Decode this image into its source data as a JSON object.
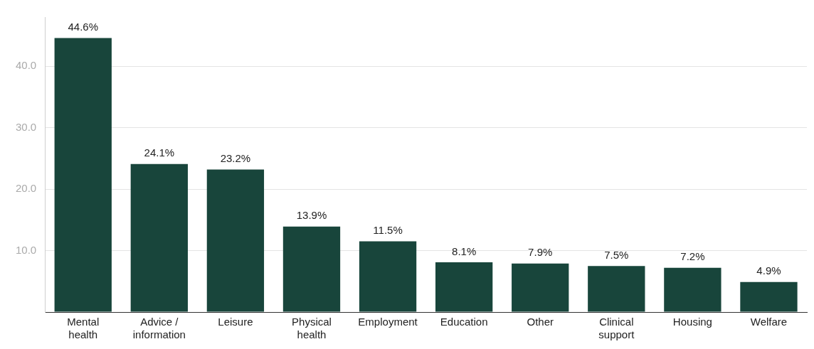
{
  "chart_data": {
    "type": "bar",
    "categories": [
      "Mental health",
      "Advice / information",
      "Leisure",
      "Physical health",
      "Employment",
      "Education",
      "Other",
      "Clinical support",
      "Housing",
      "Welfare"
    ],
    "values": [
      44.6,
      24.1,
      23.2,
      13.9,
      11.5,
      8.1,
      7.9,
      7.5,
      7.2,
      4.9
    ],
    "value_labels": [
      "44.6%",
      "24.1%",
      "23.2%",
      "13.9%",
      "11.5%",
      "8.1%",
      "7.9%",
      "7.5%",
      "7.2%",
      "4.9%"
    ],
    "color": "#18453b",
    "ylim": [
      0,
      48
    ],
    "yticks": [
      {
        "value": 0,
        "label": null
      },
      {
        "value": 10,
        "label": "10.0"
      },
      {
        "value": 20,
        "label": "20.0"
      },
      {
        "value": 30,
        "label": "30.0"
      },
      {
        "value": 40,
        "label": "40.0"
      }
    ],
    "grid": "y",
    "legend": false
  }
}
